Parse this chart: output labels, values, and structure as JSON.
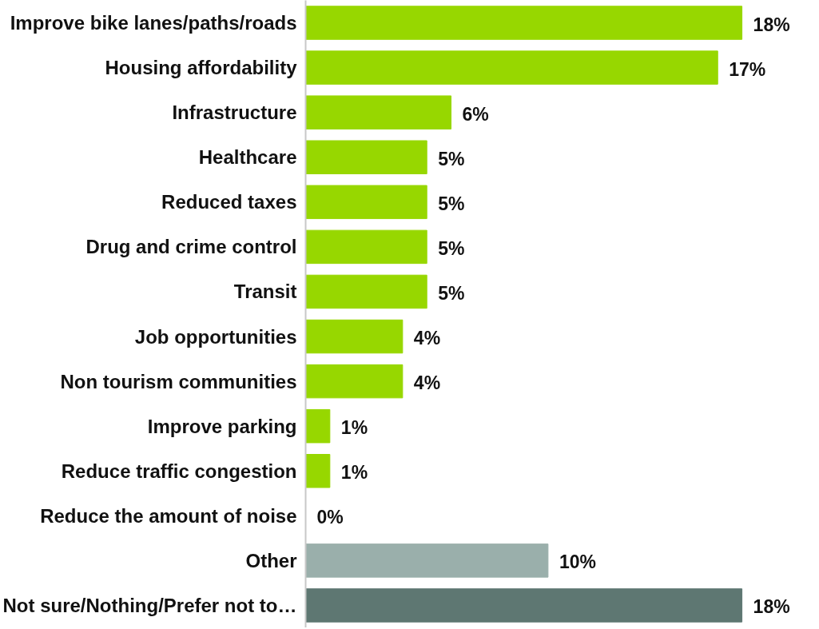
{
  "chart_data": {
    "type": "bar",
    "orientation": "horizontal",
    "grid": false,
    "value_labels": [
      "18%",
      "17%",
      "6%",
      "5%",
      "5%",
      "5%",
      "5%",
      "4%",
      "4%",
      "1%",
      "1%",
      "0%",
      "10%",
      "18%"
    ],
    "categories": [
      "Improve bike lanes/paths/roads",
      "Housing affordability",
      "Infrastructure",
      "Healthcare",
      "Reduced taxes",
      "Drug and crime control",
      "Transit",
      "Job opportunities",
      "Non tourism communities",
      "Improve parking",
      "Reduce traffic congestion",
      "Reduce the amount of noise",
      "Other",
      "Not sure/Nothing/Prefer not to…"
    ],
    "values": [
      18,
      17,
      6,
      5,
      5,
      5,
      5,
      4,
      4,
      1,
      1,
      0,
      10,
      18
    ],
    "colors": [
      "#97d700",
      "#97d700",
      "#97d700",
      "#97d700",
      "#97d700",
      "#97d700",
      "#97d700",
      "#97d700",
      "#97d700",
      "#97d700",
      "#97d700",
      "#97d700",
      "#9aafab",
      "#5e7772"
    ]
  }
}
